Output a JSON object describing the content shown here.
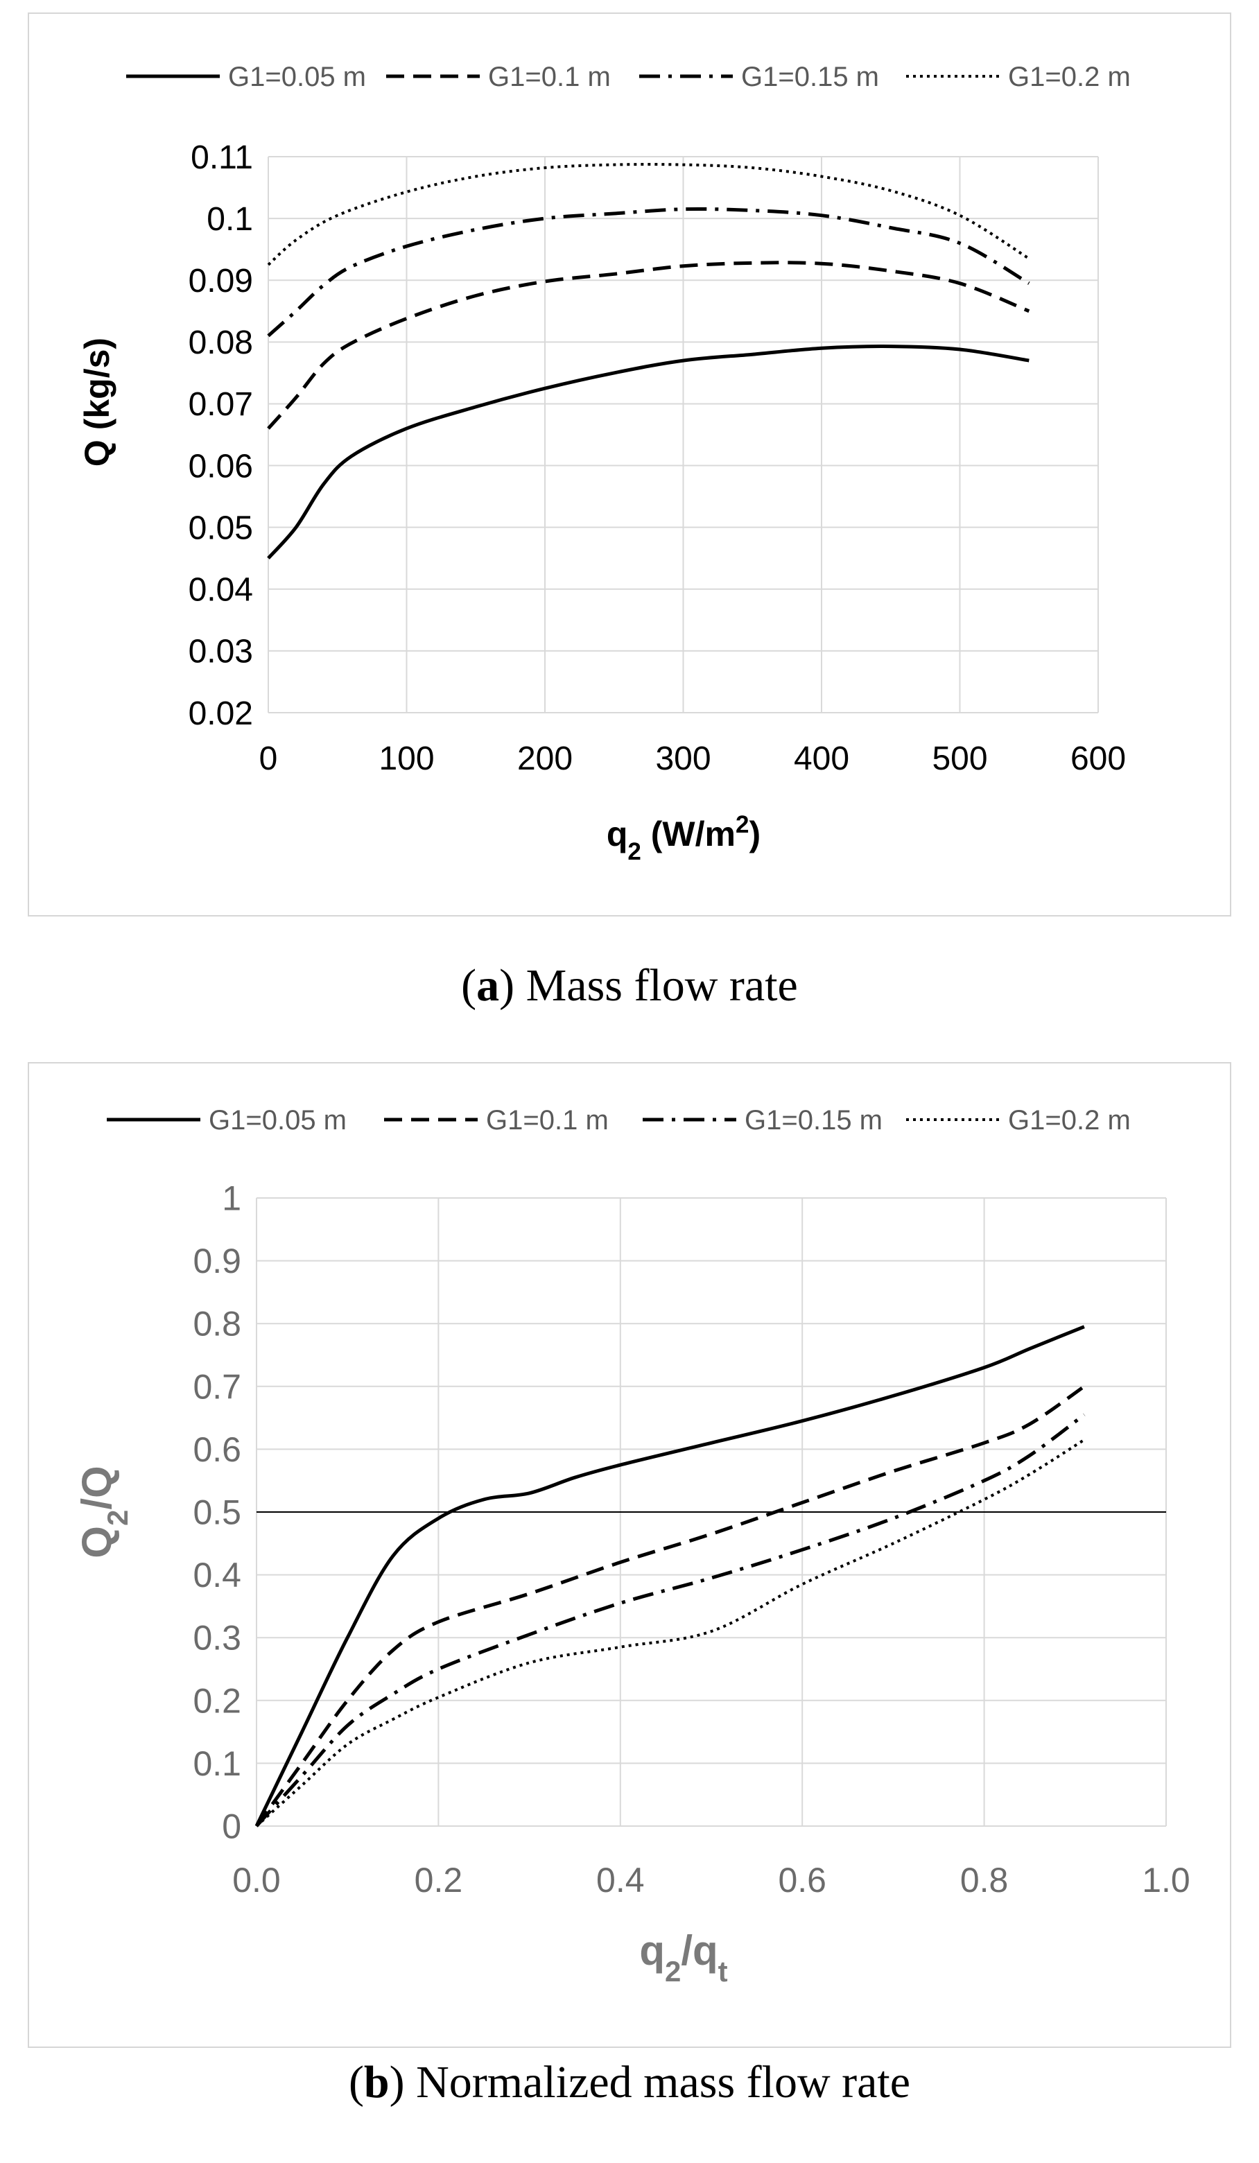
{
  "chart_data": [
    {
      "type": "line",
      "title": "",
      "xlabel": "q2 (W/m2)",
      "ylabel": "Q (kg/s)",
      "xlim": [
        0,
        600
      ],
      "ylim": [
        0.02,
        0.11
      ],
      "xticks": [
        "0",
        "100",
        "200",
        "300",
        "400",
        "500",
        "600"
      ],
      "yticks": [
        "0.02",
        "0.03",
        "0.04",
        "0.05",
        "0.06",
        "0.07",
        "0.08",
        "0.09",
        "0.1",
        "0.11"
      ],
      "grid": true,
      "legend_position": "top",
      "series": [
        {
          "name": "G1=0.05 m",
          "style": "solid",
          "points": [
            [
              0,
              0.045
            ],
            [
              20,
              0.05
            ],
            [
              40,
              0.057
            ],
            [
              60,
              0.0615
            ],
            [
              100,
              0.066
            ],
            [
              150,
              0.0695
            ],
            [
              200,
              0.0725
            ],
            [
              250,
              0.075
            ],
            [
              300,
              0.077
            ],
            [
              350,
              0.078
            ],
            [
              400,
              0.079
            ],
            [
              450,
              0.0793
            ],
            [
              500,
              0.0788
            ],
            [
              550,
              0.077
            ]
          ]
        },
        {
          "name": "G1=0.1 m",
          "style": "dashed",
          "points": [
            [
              0,
              0.066
            ],
            [
              20,
              0.071
            ],
            [
              40,
              0.0765
            ],
            [
              60,
              0.0798
            ],
            [
              100,
              0.0838
            ],
            [
              150,
              0.0875
            ],
            [
              200,
              0.0898
            ],
            [
              250,
              0.091
            ],
            [
              300,
              0.0923
            ],
            [
              350,
              0.0928
            ],
            [
              400,
              0.0927
            ],
            [
              450,
              0.0915
            ],
            [
              500,
              0.0895
            ],
            [
              550,
              0.085
            ]
          ]
        },
        {
          "name": "G1=0.15 m",
          "style": "dashdot",
          "points": [
            [
              0,
              0.081
            ],
            [
              20,
              0.085
            ],
            [
              40,
              0.0892
            ],
            [
              60,
              0.0922
            ],
            [
              100,
              0.0955
            ],
            [
              150,
              0.0982
            ],
            [
              200,
              0.1
            ],
            [
              250,
              0.1008
            ],
            [
              300,
              0.1015
            ],
            [
              350,
              0.1013
            ],
            [
              400,
              0.1005
            ],
            [
              450,
              0.0985
            ],
            [
              500,
              0.096
            ],
            [
              550,
              0.0895
            ]
          ]
        },
        {
          "name": "G1=0.2 m",
          "style": "dotted",
          "points": [
            [
              0,
              0.0925
            ],
            [
              20,
              0.0965
            ],
            [
              50,
              0.1005
            ],
            [
              100,
              0.1043
            ],
            [
              150,
              0.1068
            ],
            [
              200,
              0.1082
            ],
            [
              250,
              0.1087
            ],
            [
              300,
              0.1087
            ],
            [
              350,
              0.1082
            ],
            [
              400,
              0.1068
            ],
            [
              450,
              0.1045
            ],
            [
              500,
              0.1005
            ],
            [
              550,
              0.0935
            ]
          ]
        }
      ]
    },
    {
      "type": "line",
      "title": "",
      "xlabel": "q2/qt",
      "ylabel": "Q2/Q",
      "xlim": [
        0,
        1.0
      ],
      "ylim": [
        0,
        1
      ],
      "xticks": [
        "0.0",
        "0.2",
        "0.4",
        "0.6",
        "0.8",
        "1.0"
      ],
      "yticks": [
        "0",
        "0.1",
        "0.2",
        "0.3",
        "0.4",
        "0.5",
        "0.6",
        "0.7",
        "0.8",
        "0.9",
        "1"
      ],
      "grid": true,
      "legend_position": "top",
      "reference_line_y": 0.5,
      "series": [
        {
          "name": "G1=0.05 m",
          "style": "solid",
          "points": [
            [
              0,
              0
            ],
            [
              0.05,
              0.15
            ],
            [
              0.1,
              0.3
            ],
            [
              0.15,
              0.43
            ],
            [
              0.2,
              0.49
            ],
            [
              0.25,
              0.52
            ],
            [
              0.3,
              0.53
            ],
            [
              0.35,
              0.555
            ],
            [
              0.4,
              0.575
            ],
            [
              0.5,
              0.61
            ],
            [
              0.6,
              0.645
            ],
            [
              0.7,
              0.685
            ],
            [
              0.8,
              0.73
            ],
            [
              0.85,
              0.76
            ],
            [
              0.91,
              0.795
            ]
          ]
        },
        {
          "name": "G1=0.1 m",
          "style": "dashed",
          "points": [
            [
              0,
              0
            ],
            [
              0.05,
              0.1
            ],
            [
              0.1,
              0.2
            ],
            [
              0.15,
              0.28
            ],
            [
              0.2,
              0.325
            ],
            [
              0.3,
              0.37
            ],
            [
              0.4,
              0.42
            ],
            [
              0.5,
              0.465
            ],
            [
              0.6,
              0.515
            ],
            [
              0.7,
              0.565
            ],
            [
              0.8,
              0.61
            ],
            [
              0.85,
              0.64
            ],
            [
              0.91,
              0.7
            ]
          ]
        },
        {
          "name": "G1=0.15 m",
          "style": "dashdot",
          "points": [
            [
              0,
              0
            ],
            [
              0.05,
              0.08
            ],
            [
              0.1,
              0.16
            ],
            [
              0.15,
              0.21
            ],
            [
              0.2,
              0.25
            ],
            [
              0.3,
              0.305
            ],
            [
              0.4,
              0.355
            ],
            [
              0.5,
              0.395
            ],
            [
              0.6,
              0.44
            ],
            [
              0.7,
              0.49
            ],
            [
              0.8,
              0.55
            ],
            [
              0.85,
              0.59
            ],
            [
              0.91,
              0.655
            ]
          ]
        },
        {
          "name": "G1=0.2 m",
          "style": "dotted",
          "points": [
            [
              0,
              0
            ],
            [
              0.05,
              0.065
            ],
            [
              0.1,
              0.13
            ],
            [
              0.15,
              0.17
            ],
            [
              0.2,
              0.205
            ],
            [
              0.3,
              0.26
            ],
            [
              0.4,
              0.285
            ],
            [
              0.5,
              0.31
            ],
            [
              0.6,
              0.385
            ],
            [
              0.7,
              0.45
            ],
            [
              0.8,
              0.52
            ],
            [
              0.85,
              0.56
            ],
            [
              0.91,
              0.615
            ]
          ]
        }
      ]
    }
  ],
  "captions": [
    {
      "letter": "a",
      "text": "Mass flow rate"
    },
    {
      "letter": "b",
      "text": "Normalized mass flow rate"
    }
  ],
  "colors": {
    "line": "#000000",
    "grid": "#d9d9d9",
    "axis_text": "#595959",
    "panel_border": "#d6d6d6"
  }
}
